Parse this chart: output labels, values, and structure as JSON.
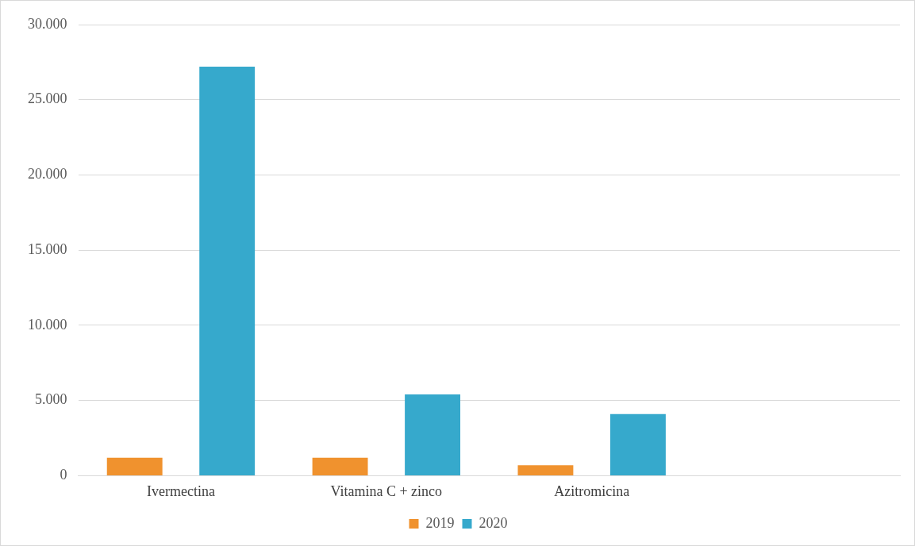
{
  "chart_data": {
    "type": "bar",
    "categories": [
      "Ivermectina",
      "Vitamina C + zinco",
      "Azitromicina",
      null
    ],
    "series": [
      {
        "name": "2019",
        "color": "#f0922e",
        "values": [
          1200,
          1200,
          700,
          null
        ]
      },
      {
        "name": "2020",
        "color": "#36a9cc",
        "values": [
          27200,
          5400,
          4100,
          null
        ]
      }
    ],
    "ylim": [
      0,
      30000
    ],
    "yticks": [
      {
        "value": 0,
        "label": "0"
      },
      {
        "value": 5000,
        "label": "5.000"
      },
      {
        "value": 10000,
        "label": "10.000"
      },
      {
        "value": 15000,
        "label": "15.000"
      },
      {
        "value": 20000,
        "label": "20.000"
      },
      {
        "value": 25000,
        "label": "25.000"
      },
      {
        "value": 30000,
        "label": "30.000"
      }
    ],
    "grid": "y",
    "legend": "bottom"
  }
}
